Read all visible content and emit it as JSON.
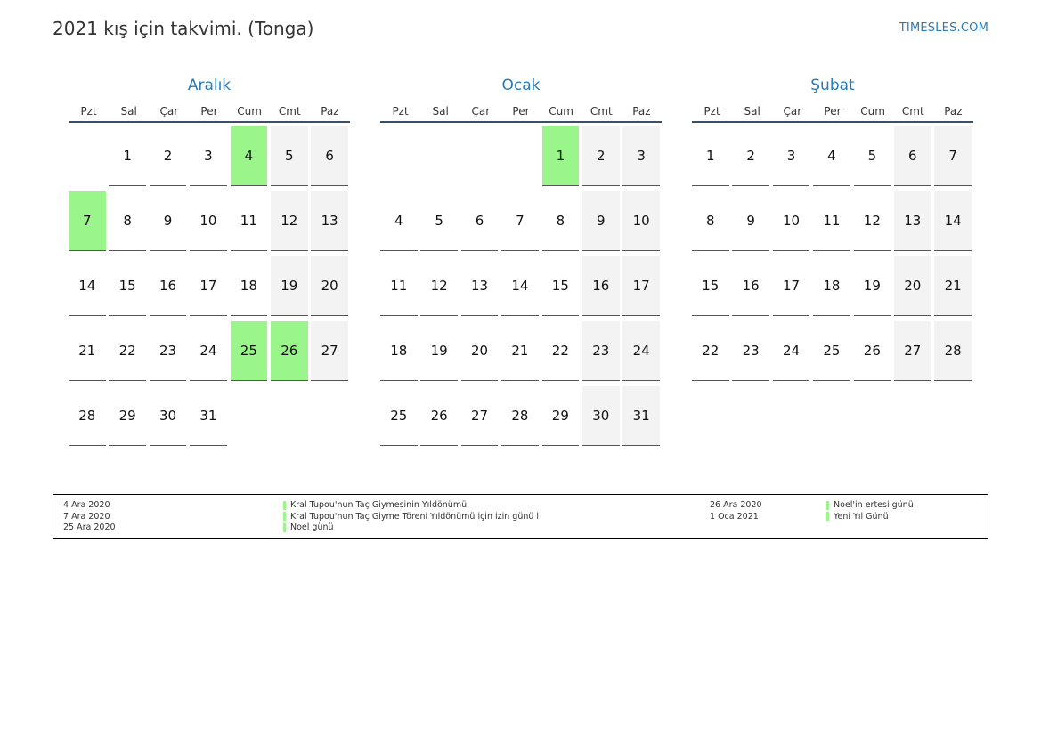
{
  "header": {
    "title": "2021 kış için takvimi. (Tonga)",
    "site": "TIMESLES.COM"
  },
  "weekdays": [
    "Pzt",
    "Sal",
    "Çar",
    "Per",
    "Cum",
    "Cmt",
    "Paz"
  ],
  "months": [
    {
      "name": "Aralık",
      "start_offset": 1,
      "days": 31,
      "holidays": [
        4,
        7,
        25,
        26
      ]
    },
    {
      "name": "Ocak",
      "start_offset": 4,
      "days": 31,
      "holidays": [
        1
      ]
    },
    {
      "name": "Şubat",
      "start_offset": 0,
      "days": 28,
      "holidays": []
    }
  ],
  "legend": {
    "left": [
      {
        "date": "4 Ara 2020",
        "name": "Kral Tupou'nun Taç Giymesinin Yıldönümü"
      },
      {
        "date": "7 Ara 2020",
        "name": "Kral Tupou'nun Taç Giyme Töreni Yıldönümü için izin günü l"
      },
      {
        "date": "25 Ara 2020",
        "name": "Noel günü"
      }
    ],
    "right": [
      {
        "date": "26 Ara 2020",
        "name": "Noel'in ertesi günü"
      },
      {
        "date": "1 Oca 2021",
        "name": "Yeni Yıl Günü"
      }
    ]
  }
}
